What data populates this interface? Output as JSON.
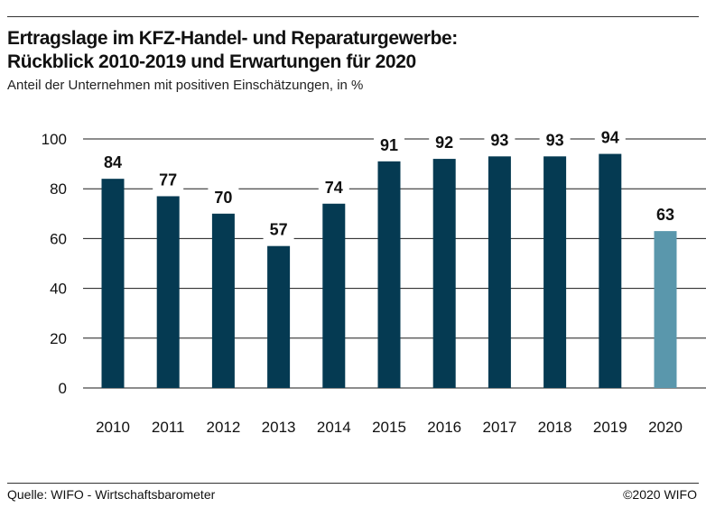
{
  "header": {
    "title_line1": "Ertragslage im KFZ-Handel- und Reparaturgewerbe:",
    "title_line2": "Rückblick 2010-2019 und Erwartungen für 2020",
    "subtitle": "Anteil der Unternehmen mit positiven Einschätzungen, in %"
  },
  "footer": {
    "source": "Quelle: WIFO - Wirtschaftsbarometer",
    "copyright": "©2020 WIFO"
  },
  "colors": {
    "actual": "#053a52",
    "expectation": "#5a97ac",
    "grid": "#1a1a1a"
  },
  "chart_data": {
    "type": "bar",
    "categories": [
      "2010",
      "2011",
      "2012",
      "2013",
      "2014",
      "2015",
      "2016",
      "2017",
      "2018",
      "2019",
      "2020"
    ],
    "values": [
      84,
      77,
      70,
      57,
      74,
      91,
      92,
      93,
      93,
      94,
      63
    ],
    "data_labels": [
      "84",
      "77",
      "70",
      "57",
      "74",
      "91",
      "92",
      "93",
      "93",
      "94",
      "63"
    ],
    "highlight_index": 10,
    "ylim": [
      0,
      100
    ],
    "yticks": [
      0,
      20,
      40,
      60,
      80,
      100
    ],
    "ytick_labels": [
      "0",
      "20",
      "40",
      "60",
      "80",
      "100"
    ],
    "grid": true,
    "xlabel": "",
    "ylabel": ""
  }
}
